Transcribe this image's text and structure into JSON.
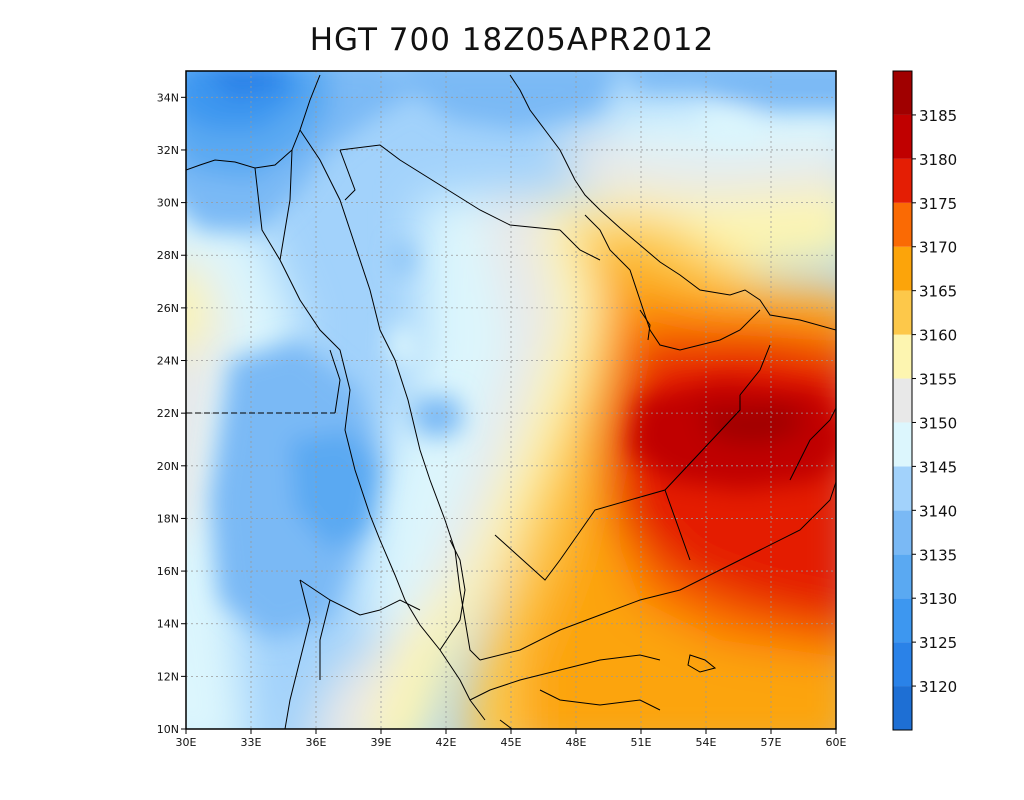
{
  "title": "HGT 700 18Z05APR2012",
  "map": {
    "x_ticks": [
      "30E",
      "33E",
      "36E",
      "39E",
      "42E",
      "45E",
      "48E",
      "51E",
      "54E",
      "57E",
      "60E"
    ],
    "y_ticks": [
      "10N",
      "12N",
      "14N",
      "16N",
      "18N",
      "20N",
      "22N",
      "24N",
      "26N",
      "28N",
      "30N",
      "32N",
      "34N"
    ],
    "lon_range": [
      30,
      60
    ],
    "lat_range": [
      10,
      35
    ],
    "gridlines": true
  },
  "colorbar": {
    "labels": [
      "3120",
      "3125",
      "3130",
      "3135",
      "3140",
      "3145",
      "3150",
      "3155",
      "3160",
      "3165",
      "3170",
      "3175",
      "3180",
      "3185"
    ],
    "colors": [
      "#1e6fd4",
      "#2a82e8",
      "#3d97f0",
      "#5aa9f2",
      "#7ab9f5",
      "#a2d2fb",
      "#dcf6fd",
      "#e8e8e8",
      "#fdf5b0",
      "#fdc84a",
      "#fca40a",
      "#fa6a04",
      "#e41e04",
      "#c00000",
      "#a00000"
    ]
  }
}
